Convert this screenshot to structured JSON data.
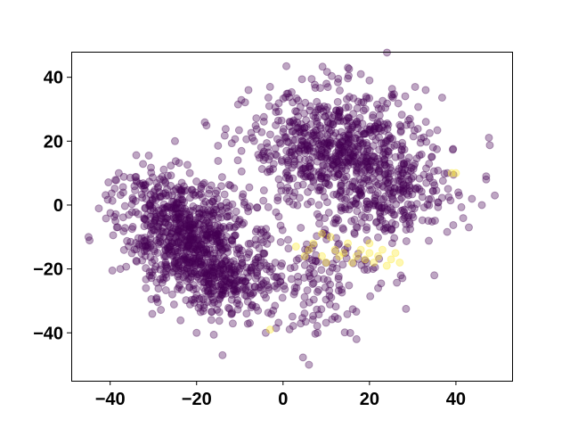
{
  "chart_data": {
    "type": "scatter",
    "title": "",
    "xlabel": "",
    "ylabel": "",
    "xlim": [
      -49,
      53
    ],
    "ylim": [
      -55,
      48
    ],
    "xticks": [
      -40,
      -20,
      0,
      20,
      40
    ],
    "yticks": [
      -40,
      -20,
      0,
      20,
      40
    ],
    "xtick_labels": [
      "−40",
      "−20",
      "0",
      "20",
      "40"
    ],
    "ytick_labels": [
      "−40",
      "−20",
      "0",
      "20",
      "40"
    ],
    "grid": false,
    "legend": "none",
    "marker_alpha": 0.35,
    "series": [
      {
        "color": "#440154",
        "clusters": [
          {
            "center": [
              -22,
              -10
            ],
            "spread": [
              7,
              8
            ],
            "count": 650
          },
          {
            "center": [
              -14,
              -24
            ],
            "spread": [
              6,
              5
            ],
            "count": 250
          },
          {
            "center": [
              12,
              18
            ],
            "spread": [
              10,
              9
            ],
            "count": 650
          },
          {
            "center": [
              24,
              4
            ],
            "spread": [
              8,
              8
            ],
            "count": 300
          },
          {
            "center": [
              4,
              -22
            ],
            "spread": [
              9,
              9
            ],
            "count": 170
          },
          {
            "center": [
              -30,
              2
            ],
            "spread": [
              6,
              6
            ],
            "count": 100
          }
        ],
        "extra_points": [
          [
            -14,
            -47
          ],
          [
            6,
            -50
          ],
          [
            -4,
            -40
          ],
          [
            8,
            -40
          ],
          [
            38,
            10
          ],
          [
            47,
            8
          ],
          [
            47,
            9
          ],
          [
            49,
            3
          ],
          [
            43,
            -7
          ],
          [
            -38,
            10
          ],
          [
            -45,
            -10
          ],
          [
            -3,
            37
          ],
          [
            -8,
            36
          ],
          [
            -25,
            20
          ],
          [
            -20,
            -40
          ],
          [
            15,
            43
          ],
          [
            18,
            41
          ],
          [
            20,
            39
          ],
          [
            33,
            36
          ],
          [
            17,
            -42
          ],
          [
            46,
            0
          ],
          [
            35,
            -22
          ],
          [
            22,
            -26
          ],
          [
            12,
            -35
          ]
        ]
      },
      {
        "color": "#fde725",
        "points": [
          [
            3,
            -13
          ],
          [
            5,
            -16
          ],
          [
            7,
            -12
          ],
          [
            9,
            -9
          ],
          [
            11,
            -10
          ],
          [
            12,
            -14
          ],
          [
            13,
            -16
          ],
          [
            14,
            -15
          ],
          [
            16,
            -18
          ],
          [
            17,
            -16
          ],
          [
            18,
            -14
          ],
          [
            19,
            -17
          ],
          [
            20,
            -15
          ],
          [
            21,
            -18
          ],
          [
            22,
            -16
          ],
          [
            23,
            -14
          ],
          [
            24,
            -19
          ],
          [
            25,
            -17
          ],
          [
            26,
            -15
          ],
          [
            9,
            -16
          ],
          [
            15,
            -12
          ],
          [
            39,
            10
          ],
          [
            40,
            10
          ],
          [
            -3,
            -39
          ],
          [
            10,
            -18
          ],
          [
            20,
            -12
          ],
          [
            27,
            -18
          ],
          [
            6,
            -14
          ]
        ]
      }
    ]
  }
}
